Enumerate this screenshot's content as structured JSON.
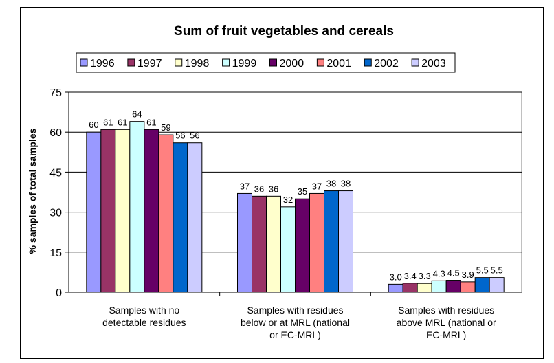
{
  "chart_data": {
    "type": "bar",
    "title": "Sum of fruit vegetables and cereals",
    "xlabel": "",
    "ylabel": "% samples of total samples",
    "ylim": [
      0,
      75
    ],
    "yticks": [
      0,
      15,
      30,
      45,
      60,
      75
    ],
    "grid": true,
    "legend_position": "top",
    "categories": [
      [
        "Samples with no",
        "detectable residues"
      ],
      [
        "Samples with residues",
        "below or at MRL (national",
        "or EC-MRL)"
      ],
      [
        "Samples with residues",
        "above MRL (national or",
        "EC-MRL)"
      ]
    ],
    "series": [
      {
        "name": "1996",
        "color": "#9999ff",
        "values": [
          60,
          37,
          3.0
        ],
        "labels": [
          "60",
          "37",
          "3.0"
        ]
      },
      {
        "name": "1997",
        "color": "#993366",
        "values": [
          61,
          36,
          3.4
        ],
        "labels": [
          "61",
          "36",
          "3.4"
        ]
      },
      {
        "name": "1998",
        "color": "#ffffcc",
        "values": [
          61,
          36,
          3.3
        ],
        "labels": [
          "61",
          "36",
          "3.3"
        ]
      },
      {
        "name": "1999",
        "color": "#ccffff",
        "values": [
          64,
          32,
          4.3
        ],
        "labels": [
          "64",
          "32",
          "4.3"
        ]
      },
      {
        "name": "2000",
        "color": "#660066",
        "values": [
          61,
          35,
          4.5
        ],
        "labels": [
          "61",
          "35",
          "4.5"
        ]
      },
      {
        "name": "2001",
        "color": "#ff8080",
        "values": [
          59,
          37,
          3.9
        ],
        "labels": [
          "59",
          "37",
          "3.9"
        ]
      },
      {
        "name": "2002",
        "color": "#0066cc",
        "values": [
          56,
          38,
          5.5
        ],
        "labels": [
          "56",
          "38",
          "5.5"
        ]
      },
      {
        "name": "2003",
        "color": "#ccccff",
        "values": [
          56,
          38,
          5.5
        ],
        "labels": [
          "56",
          "38",
          "5.5"
        ]
      }
    ]
  }
}
